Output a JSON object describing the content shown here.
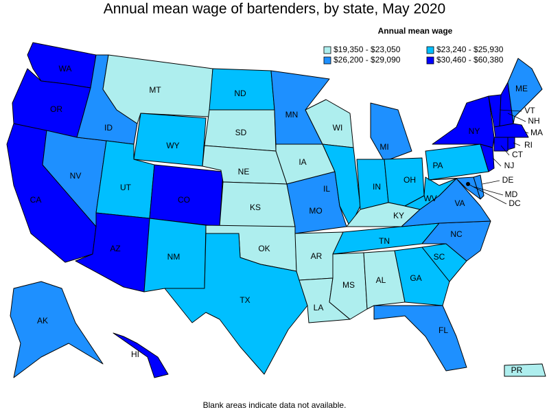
{
  "title": "Annual mean wage of bartenders, by state, May 2020",
  "legend": {
    "title": "Annual mean wage",
    "items": [
      {
        "label": "$19,350 - $23,050",
        "color": "#aeeeee"
      },
      {
        "label": "$23,240 - $25,930",
        "color": "#00bfff"
      },
      {
        "label": "$26,200 - $29,090",
        "color": "#1e90ff"
      },
      {
        "label": "$30,460 - $60,380",
        "color": "#0000ff"
      }
    ]
  },
  "states": [
    {
      "label": "WA",
      "color": "#0000ff"
    },
    {
      "label": "OR",
      "color": "#0000ff"
    },
    {
      "label": "CA",
      "color": "#0000ff"
    },
    {
      "label": "NV",
      "color": "#1e90ff"
    },
    {
      "label": "ID",
      "color": "#1e90ff"
    },
    {
      "label": "MT",
      "color": "#aeeeee"
    },
    {
      "label": "WY",
      "color": "#00bfff"
    },
    {
      "label": "UT",
      "color": "#00bfff"
    },
    {
      "label": "AZ",
      "color": "#0000ff"
    },
    {
      "label": "CO",
      "color": "#0000ff"
    },
    {
      "label": "NM",
      "color": "#00bfff"
    },
    {
      "label": "ND",
      "color": "#00bfff"
    },
    {
      "label": "SD",
      "color": "#aeeeee"
    },
    {
      "label": "NE",
      "color": "#aeeeee"
    },
    {
      "label": "KS",
      "color": "#aeeeee"
    },
    {
      "label": "OK",
      "color": "#aeeeee"
    },
    {
      "label": "TX",
      "color": "#00bfff"
    },
    {
      "label": "MN",
      "color": "#1e90ff"
    },
    {
      "label": "IA",
      "color": "#aeeeee"
    },
    {
      "label": "MO",
      "color": "#1e90ff"
    },
    {
      "label": "AR",
      "color": "#aeeeee"
    },
    {
      "label": "LA",
      "color": "#aeeeee"
    },
    {
      "label": "WI",
      "color": "#aeeeee"
    },
    {
      "label": "IL",
      "color": "#00bfff"
    },
    {
      "label": "MI",
      "color": "#1e90ff"
    },
    {
      "label": "IN",
      "color": "#00bfff"
    },
    {
      "label": "OH",
      "color": "#00bfff"
    },
    {
      "label": "KY",
      "color": "#aeeeee"
    },
    {
      "label": "TN",
      "color": "#00bfff"
    },
    {
      "label": "MS",
      "color": "#aeeeee"
    },
    {
      "label": "AL",
      "color": "#aeeeee"
    },
    {
      "label": "GA",
      "color": "#00bfff"
    },
    {
      "label": "FL",
      "color": "#1e90ff"
    },
    {
      "label": "SC",
      "color": "#00bfff"
    },
    {
      "label": "NC",
      "color": "#1e90ff"
    },
    {
      "label": "VA",
      "color": "#1e90ff"
    },
    {
      "label": "WV",
      "color": "#00bfff"
    },
    {
      "label": "MD",
      "color": "#1e90ff"
    },
    {
      "label": "DE",
      "color": "#1e90ff"
    },
    {
      "label": "PA",
      "color": "#00bfff"
    },
    {
      "label": "NJ",
      "color": "#0000ff"
    },
    {
      "label": "NY",
      "color": "#0000ff"
    },
    {
      "label": "VT",
      "color": "#0000ff"
    },
    {
      "label": "NH",
      "color": "#0000ff"
    },
    {
      "label": "ME",
      "color": "#1e90ff"
    },
    {
      "label": "MA",
      "color": "#0000ff"
    },
    {
      "label": "CT",
      "color": "#0000ff"
    },
    {
      "label": "RI",
      "color": "#0000ff"
    },
    {
      "label": "AK",
      "color": "#1e90ff"
    },
    {
      "label": "HI",
      "color": "#0000ff"
    },
    {
      "label": "PR",
      "color": "#aeeeee"
    },
    {
      "label": "DC",
      "color": "#000000"
    }
  ],
  "footnote": "Blank areas indicate data not available."
}
